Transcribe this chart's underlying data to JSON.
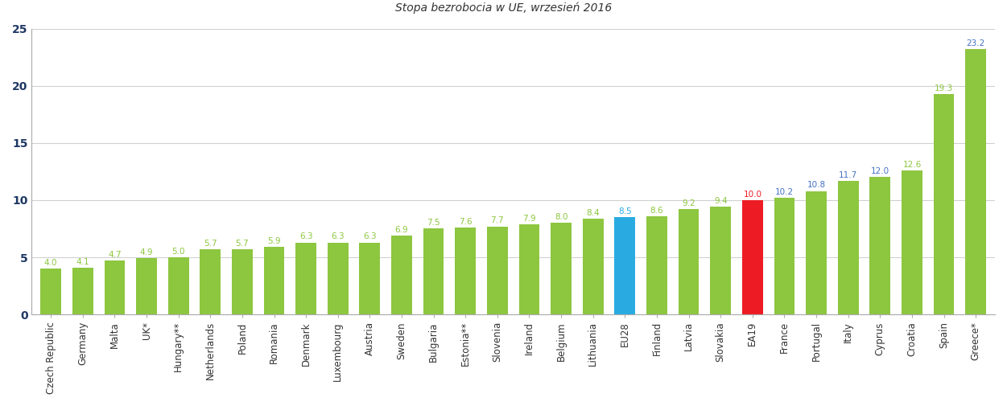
{
  "categories": [
    "Czech Republic",
    "Germany",
    "Malta",
    "UK*",
    "Hungary**",
    "Netherlands",
    "Poland",
    "Romania",
    "Denmark",
    "Luxembourg",
    "Austria",
    "Sweden",
    "Bulgaria",
    "Estonia**",
    "Slovenia",
    "Ireland",
    "Belgium",
    "Lithuania",
    "EU28",
    "Finland",
    "Latvia",
    "Slovakia",
    "EA19",
    "France",
    "Portugal",
    "Italy",
    "Cyprus",
    "Croatia",
    "Spain",
    "Greece*"
  ],
  "values": [
    4.0,
    4.1,
    4.7,
    4.9,
    5.0,
    5.7,
    5.7,
    5.9,
    6.3,
    6.3,
    6.3,
    6.9,
    7.5,
    7.6,
    7.7,
    7.9,
    8.0,
    8.4,
    8.5,
    8.6,
    9.2,
    9.4,
    10.0,
    10.2,
    10.8,
    11.7,
    12.0,
    12.6,
    19.3,
    23.2
  ],
  "bar_colors": [
    "#8dc63f",
    "#8dc63f",
    "#8dc63f",
    "#8dc63f",
    "#8dc63f",
    "#8dc63f",
    "#8dc63f",
    "#8dc63f",
    "#8dc63f",
    "#8dc63f",
    "#8dc63f",
    "#8dc63f",
    "#8dc63f",
    "#8dc63f",
    "#8dc63f",
    "#8dc63f",
    "#8dc63f",
    "#8dc63f",
    "#29abe2",
    "#8dc63f",
    "#8dc63f",
    "#8dc63f",
    "#ed1c24",
    "#8dc63f",
    "#8dc63f",
    "#8dc63f",
    "#8dc63f",
    "#8dc63f",
    "#8dc63f",
    "#8dc63f"
  ],
  "label_colors": [
    "#8dc63f",
    "#8dc63f",
    "#8dc63f",
    "#8dc63f",
    "#8dc63f",
    "#8dc63f",
    "#8dc63f",
    "#8dc63f",
    "#8dc63f",
    "#8dc63f",
    "#8dc63f",
    "#8dc63f",
    "#8dc63f",
    "#8dc63f",
    "#8dc63f",
    "#8dc63f",
    "#8dc63f",
    "#8dc63f",
    "#29abe2",
    "#8dc63f",
    "#8dc63f",
    "#8dc63f",
    "#ed1c24",
    "#4472c4",
    "#4472c4",
    "#4472c4",
    "#4472c4",
    "#8dc63f",
    "#8dc63f",
    "#4472c4"
  ],
  "ylim": [
    0,
    25
  ],
  "yticks": [
    0,
    5,
    10,
    15,
    20,
    25
  ],
  "background_color": "#ffffff",
  "grid_color": "#d0d0d0",
  "ytick_color": "#1f3864",
  "xtick_color": "#333333",
  "title": "Stopa bezrobocia w UE, wrzesień 2016",
  "bar_width": 0.65
}
